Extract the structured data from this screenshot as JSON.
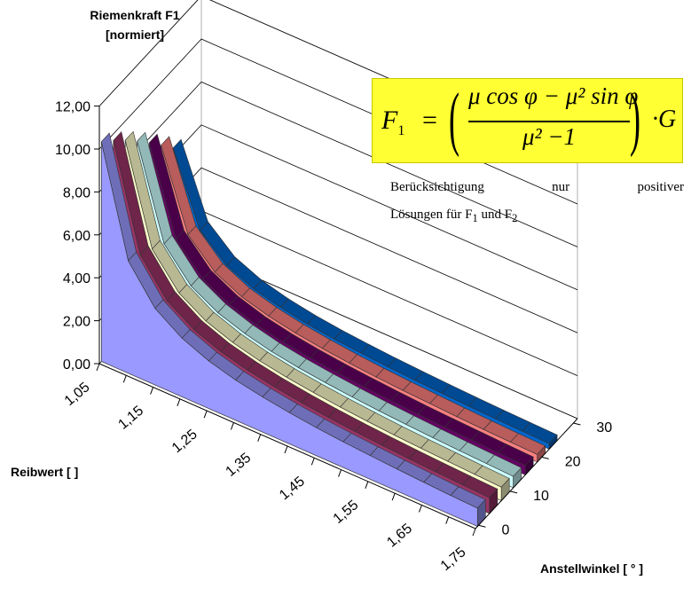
{
  "chart_data": {
    "type": "3d-area",
    "ylabel": "Riemenkraft F1\n[normiert]",
    "ylabel_lines": [
      "Riemenkraft F1",
      "[normiert]"
    ],
    "xlabel": "Reibwert [ ]",
    "zlabel": "Anstellwinkel [ ° ]",
    "ylim": [
      0,
      12
    ],
    "y_ticks": [
      "0,00",
      "2,00",
      "4,00",
      "6,00",
      "8,00",
      "10,00",
      "12,00"
    ],
    "x_ticks": [
      "1,05",
      "1,15",
      "1,25",
      "1,35",
      "1,45",
      "1,55",
      "1,65",
      "1,75"
    ],
    "z_ticks": [
      "0",
      "10",
      "20",
      "30"
    ],
    "mu": [
      1.05,
      1.1,
      1.15,
      1.2,
      1.25,
      1.3,
      1.35,
      1.4,
      1.45,
      1.5,
      1.55,
      1.6,
      1.65,
      1.7,
      1.75
    ],
    "grid": true,
    "series": [
      {
        "angle": 0,
        "color": "#9999ff",
        "values": [
          10.24,
          5.24,
          3.57,
          2.73,
          2.22,
          1.88,
          1.64,
          1.46,
          1.31,
          1.2,
          1.11,
          1.03,
          0.96,
          0.9,
          0.85
        ]
      },
      {
        "angle": 5,
        "color": "#993366",
        "values": [
          9.7,
          4.93,
          3.34,
          2.54,
          2.06,
          1.74,
          1.51,
          1.33,
          1.19,
          1.08,
          0.99,
          0.91,
          0.85,
          0.79,
          0.74
        ]
      },
      {
        "angle": 10,
        "color": "#ffffcc",
        "values": [
          9.11,
          4.59,
          3.09,
          2.33,
          1.88,
          1.58,
          1.36,
          1.2,
          1.07,
          0.96,
          0.87,
          0.8,
          0.74,
          0.68,
          0.63
        ]
      },
      {
        "angle": 15,
        "color": "#ccffff",
        "values": [
          8.47,
          4.23,
          2.82,
          2.12,
          1.7,
          1.41,
          1.21,
          1.06,
          0.94,
          0.84,
          0.76,
          0.69,
          0.63,
          0.58,
          0.53
        ]
      },
      {
        "angle": 20,
        "color": "#660066",
        "values": [
          7.79,
          3.85,
          2.54,
          1.89,
          1.5,
          1.24,
          1.06,
          0.92,
          0.81,
          0.72,
          0.64,
          0.58,
          0.53,
          0.48,
          0.44
        ]
      },
      {
        "angle": 25,
        "color": "#ff8080",
        "values": [
          7.08,
          3.46,
          2.26,
          1.66,
          1.31,
          1.07,
          0.9,
          0.77,
          0.67,
          0.59,
          0.53,
          0.47,
          0.42,
          0.38,
          0.35
        ]
      },
      {
        "angle": 30,
        "color": "#0066cc",
        "values": [
          6.34,
          3.06,
          1.97,
          1.43,
          1.11,
          0.89,
          0.74,
          0.63,
          0.54,
          0.47,
          0.41,
          0.36,
          0.32,
          0.29,
          0.26
        ]
      }
    ]
  },
  "formula": {
    "lhs": "F",
    "lhs_sub": "1",
    "equals": "=",
    "numerator": "μ cos φ − μ² sin φ",
    "denominator": "μ² −1",
    "open_paren": "(",
    "close_paren": ")",
    "tail": "·G",
    "highlight": "#ffff33"
  },
  "note": {
    "line1": "Berücksichtigung nur positiver",
    "line2_prefix": "Lösungen für F",
    "sub1": "1",
    "line2_mid": " und F",
    "sub2": "2"
  }
}
